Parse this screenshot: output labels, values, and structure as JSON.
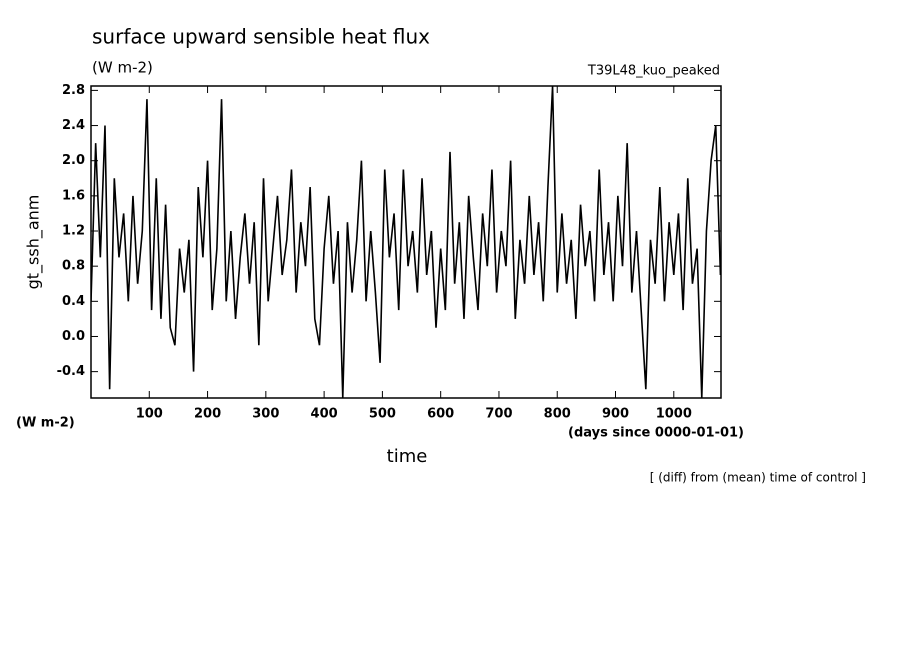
{
  "chart_data": {
    "type": "line",
    "title": "surface upward sensible heat flux",
    "subtitle": "(W m-2)",
    "annotation": "T39L48_kuo_peaked",
    "y_label": "gt_ssh_anm",
    "y_units": "(W m-2)",
    "x_units": "(days since 0000-01-01)",
    "x_label": "time",
    "note": "[ (diff) from (mean) time of control ]",
    "color": "#000000",
    "xlim": [
      0,
      1081
    ],
    "ylim": [
      -0.7,
      2.85
    ],
    "xticks": [
      100,
      200,
      300,
      400,
      500,
      600,
      700,
      800,
      900,
      1000
    ],
    "yticks": [
      -0.4,
      {
        "value": 0,
        "label": "0.0"
      },
      0.4,
      0.8,
      1.2,
      1.6,
      {
        "value": 2,
        "label": "2.0"
      },
      2.4,
      2.8
    ],
    "x": [
      0,
      8,
      16,
      24,
      32,
      40,
      48,
      56,
      64,
      72,
      80,
      88,
      96,
      104,
      112,
      120,
      128,
      136,
      144,
      152,
      160,
      168,
      176,
      184,
      192,
      200,
      208,
      216,
      224,
      232,
      240,
      248,
      256,
      264,
      272,
      280,
      288,
      296,
      304,
      312,
      320,
      328,
      336,
      344,
      352,
      360,
      368,
      376,
      384,
      392,
      400,
      408,
      416,
      424,
      432,
      440,
      448,
      456,
      464,
      472,
      480,
      488,
      496,
      504,
      512,
      520,
      528,
      536,
      544,
      552,
      560,
      568,
      576,
      584,
      592,
      600,
      608,
      616,
      624,
      632,
      640,
      648,
      656,
      664,
      672,
      680,
      688,
      696,
      704,
      712,
      720,
      728,
      736,
      744,
      752,
      760,
      768,
      776,
      784,
      792,
      800,
      808,
      816,
      824,
      832,
      840,
      848,
      856,
      864,
      872,
      880,
      888,
      896,
      904,
      912,
      920,
      928,
      936,
      944,
      952,
      960,
      968,
      976,
      984,
      992,
      1000,
      1008,
      1016,
      1024,
      1032,
      1040,
      1048,
      1056,
      1064,
      1072,
      1080
    ],
    "values": [
      0.4,
      2.2,
      0.9,
      2.4,
      -0.6,
      1.8,
      0.9,
      1.4,
      0.4,
      1.6,
      0.6,
      1.2,
      2.7,
      0.3,
      1.8,
      0.2,
      1.5,
      0.1,
      -0.1,
      1.0,
      0.5,
      1.1,
      -0.4,
      1.7,
      0.9,
      2.0,
      0.3,
      1.0,
      2.7,
      0.4,
      1.2,
      0.2,
      0.9,
      1.4,
      0.6,
      1.3,
      -0.1,
      1.8,
      0.4,
      1.0,
      1.6,
      0.7,
      1.1,
      1.9,
      0.5,
      1.3,
      0.8,
      1.7,
      0.2,
      -0.1,
      1.0,
      1.6,
      0.6,
      1.2,
      -0.7,
      1.3,
      0.5,
      1.1,
      2.0,
      0.4,
      1.2,
      0.5,
      -0.3,
      1.9,
      0.9,
      1.4,
      0.3,
      1.9,
      0.8,
      1.2,
      0.5,
      1.8,
      0.7,
      1.2,
      0.1,
      1.0,
      0.3,
      2.1,
      0.6,
      1.3,
      0.2,
      1.6,
      0.9,
      0.3,
      1.4,
      0.8,
      1.9,
      0.5,
      1.2,
      0.8,
      2.0,
      0.2,
      1.1,
      0.6,
      1.6,
      0.7,
      1.3,
      0.4,
      1.7,
      2.85,
      0.5,
      1.4,
      0.6,
      1.1,
      0.2,
      1.5,
      0.8,
      1.2,
      0.4,
      1.9,
      0.7,
      1.3,
      0.4,
      1.6,
      0.8,
      2.2,
      0.5,
      1.2,
      0.3,
      -0.6,
      1.1,
      0.6,
      1.7,
      0.4,
      1.3,
      0.7,
      1.4,
      0.3,
      1.8,
      0.6,
      1.0,
      -0.7,
      1.2,
      2.0,
      2.4,
      0.7
    ]
  }
}
